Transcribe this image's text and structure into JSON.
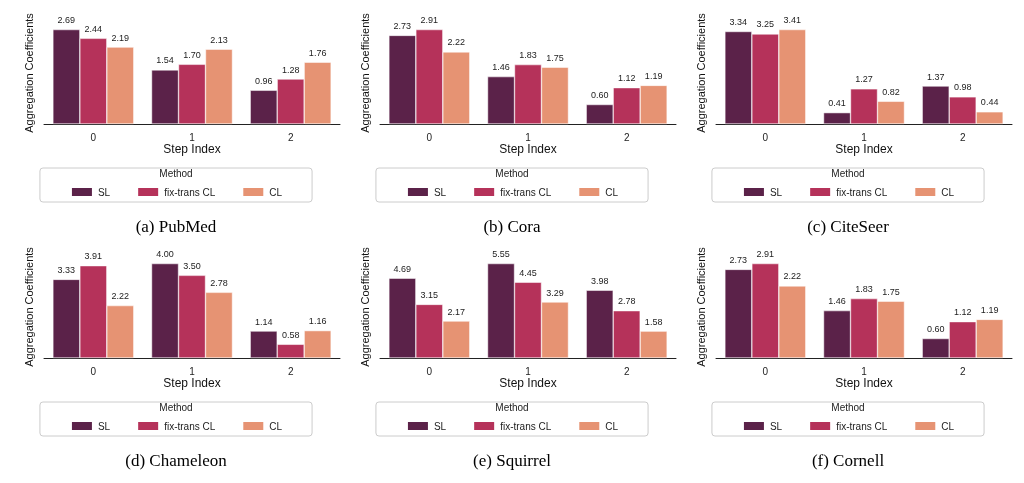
{
  "chart_data": [
    {
      "type": "bar",
      "title": "(a) PubMed",
      "xlabel": "Step Index",
      "ylabel": "Aggregation Coefficients",
      "legend_title": "Method",
      "legend": "bottom",
      "tick_labels": "x",
      "categories": [
        "0",
        "1",
        "2"
      ],
      "series": [
        {
          "name": "SL",
          "color": "#5b2249",
          "values": [
            2.69,
            1.54,
            0.96
          ],
          "value_labels": [
            "2.69",
            "1.54",
            "0.96"
          ]
        },
        {
          "name": "fix-trans CL",
          "color": "#b5325a",
          "values": [
            2.44,
            1.7,
            1.28
          ],
          "value_labels": [
            "2.44",
            "1.70",
            "1.28"
          ]
        },
        {
          "name": "CL",
          "color": "#e69373",
          "values": [
            2.19,
            2.13,
            1.76
          ],
          "value_labels": [
            "2.19",
            "2.13",
            "1.76"
          ]
        }
      ]
    },
    {
      "type": "bar",
      "title": "(b) Cora",
      "xlabel": "Step Index",
      "ylabel": "Aggregation Coefficients",
      "legend_title": "Method",
      "legend": "bottom",
      "tick_labels": "x",
      "categories": [
        "0",
        "1",
        "2"
      ],
      "series": [
        {
          "name": "SL",
          "color": "#5b2249",
          "values": [
            2.73,
            1.46,
            0.6
          ],
          "value_labels": [
            "2.73",
            "1.46",
            "0.60"
          ]
        },
        {
          "name": "fix-trans CL",
          "color": "#b5325a",
          "values": [
            2.91,
            1.83,
            1.12
          ],
          "value_labels": [
            "2.91",
            "1.83",
            "1.12"
          ]
        },
        {
          "name": "CL",
          "color": "#e69373",
          "values": [
            2.22,
            1.75,
            1.19
          ],
          "value_labels": [
            "2.22",
            "1.75",
            "1.19"
          ]
        }
      ]
    },
    {
      "type": "bar",
      "title": "(c) CiteSeer",
      "xlabel": "Step Index",
      "ylabel": "Aggregation Coefficients",
      "legend_title": "Method",
      "legend": "bottom",
      "tick_labels": "x",
      "categories": [
        "0",
        "1",
        "2"
      ],
      "series": [
        {
          "name": "SL",
          "color": "#5b2249",
          "values": [
            3.34,
            0.41,
            1.37
          ],
          "value_labels": [
            "3.34",
            "0.41",
            "1.37"
          ]
        },
        {
          "name": "fix-trans CL",
          "color": "#b5325a",
          "values": [
            3.25,
            1.27,
            0.98
          ],
          "value_labels": [
            "3.25",
            "1.27",
            "0.98"
          ]
        },
        {
          "name": "CL",
          "color": "#e69373",
          "values": [
            3.41,
            0.82,
            0.44
          ],
          "value_labels": [
            "3.41",
            "0.82",
            "0.44"
          ]
        }
      ]
    },
    {
      "type": "bar",
      "title": "(d) Chameleon",
      "xlabel": "Step Index",
      "ylabel": "Aggregation Coefficients",
      "legend_title": "Method",
      "legend": "bottom",
      "tick_labels": "x",
      "categories": [
        "0",
        "1",
        "2"
      ],
      "series": [
        {
          "name": "SL",
          "color": "#5b2249",
          "values": [
            3.33,
            4.0,
            1.14
          ],
          "value_labels": [
            "3.33",
            "4.00",
            "1.14"
          ]
        },
        {
          "name": "fix-trans CL",
          "color": "#b5325a",
          "values": [
            3.91,
            3.5,
            0.58
          ],
          "value_labels": [
            "3.91",
            "3.50",
            "0.58"
          ]
        },
        {
          "name": "CL",
          "color": "#e69373",
          "values": [
            2.22,
            2.78,
            1.16
          ],
          "value_labels": [
            "2.22",
            "2.78",
            "1.16"
          ]
        }
      ]
    },
    {
      "type": "bar",
      "title": "(e) Squirrel",
      "xlabel": "Step Index",
      "ylabel": "Aggregation Coefficients",
      "legend_title": "Method",
      "legend": "bottom",
      "tick_labels": "x",
      "categories": [
        "0",
        "1",
        "2"
      ],
      "series": [
        {
          "name": "SL",
          "color": "#5b2249",
          "values": [
            4.69,
            5.55,
            3.98
          ],
          "value_labels": [
            "4.69",
            "5.55",
            "3.98"
          ]
        },
        {
          "name": "fix-trans CL",
          "color": "#b5325a",
          "values": [
            3.15,
            4.45,
            2.78
          ],
          "value_labels": [
            "3.15",
            "4.45",
            "2.78"
          ]
        },
        {
          "name": "CL",
          "color": "#e69373",
          "values": [
            2.17,
            3.29,
            1.58
          ],
          "value_labels": [
            "2.17",
            "3.29",
            "1.58"
          ]
        }
      ]
    },
    {
      "type": "bar",
      "title": "(f) Cornell",
      "xlabel": "Step Index",
      "ylabel": "Aggregation Coefficients",
      "legend_title": "Method",
      "legend": "bottom",
      "tick_labels": "x",
      "categories": [
        "0",
        "1",
        "2"
      ],
      "series": [
        {
          "name": "SL",
          "color": "#5b2249",
          "values": [
            2.73,
            1.46,
            0.6
          ],
          "value_labels": [
            "2.73",
            "1.46",
            "0.60"
          ]
        },
        {
          "name": "fix-trans CL",
          "color": "#b5325a",
          "values": [
            2.91,
            1.83,
            1.12
          ],
          "value_labels": [
            "2.91",
            "1.83",
            "1.12"
          ]
        },
        {
          "name": "CL",
          "color": "#e69373",
          "values": [
            2.22,
            1.75,
            1.19
          ],
          "value_labels": [
            "2.22",
            "1.75",
            "1.19"
          ]
        }
      ]
    }
  ]
}
